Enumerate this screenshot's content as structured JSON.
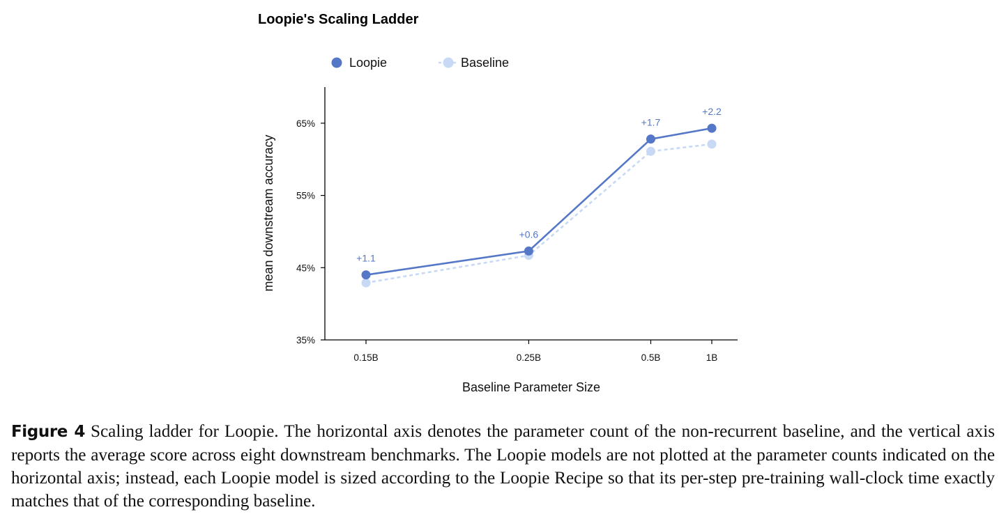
{
  "chart_data": {
    "type": "line",
    "title": "Loopie's Scaling Ladder",
    "xlabel": "Baseline Parameter Size",
    "ylabel": "mean downstream accuracy",
    "categories": [
      "0.15B",
      "0.25B",
      "0.5B",
      "1B"
    ],
    "x": [
      0.15,
      0.25,
      0.5,
      1.0
    ],
    "x_scale": "reciprocal",
    "ylim": [
      35,
      70
    ],
    "yticks": [
      35,
      45,
      55,
      65
    ],
    "ytick_labels": [
      "35%",
      "45%",
      "55%",
      "65%"
    ],
    "grid": false,
    "legend_position": "top-left, above plot",
    "series": [
      {
        "name": "Loopie",
        "values": [
          44.0,
          47.3,
          62.8,
          64.3
        ],
        "color": "#5577c8",
        "style": "solid",
        "annotations": [
          "+1.1",
          "+0.6",
          "+1.7",
          "+2.2"
        ]
      },
      {
        "name": "Baseline",
        "values": [
          42.9,
          46.7,
          61.1,
          62.1
        ],
        "color": "#c8d9f6",
        "style": "dashed"
      }
    ]
  },
  "caption": {
    "label": "Figure 4",
    "text": "Scaling ladder for Loopie. The horizontal axis denotes the parameter count of the non-recurrent baseline, and the vertical axis reports the average score across eight downstream benchmarks. The Loopie models are not plotted at the parameter counts indicated on the horizontal axis; instead, each Loopie model is sized according to the Loopie Recipe so that its per-step pre-training wall-clock time exactly matches that of the corresponding baseline."
  }
}
